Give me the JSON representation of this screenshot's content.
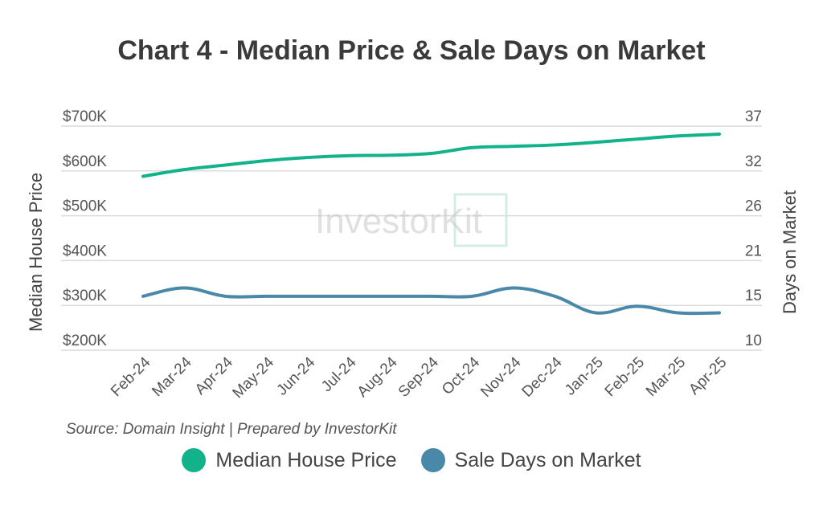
{
  "title": "Chart 4 - Median Price & Sale Days on Market",
  "source": "Source: Domain Insight | Prepared by InvestorKit",
  "watermark": "InvestorKit",
  "colors": {
    "price": "#12b28a",
    "days": "#4a88aa",
    "grid": "#dcdcdc"
  },
  "chart_data": {
    "type": "line",
    "categories": [
      "Feb-24",
      "Mar-24",
      "Apr-24",
      "May-24",
      "Jun-24",
      "Jul-24",
      "Aug-24",
      "Sep-24",
      "Oct-24",
      "Nov-24",
      "Dec-24",
      "Jan-25",
      "Feb-25",
      "Mar-25",
      "Apr-25"
    ],
    "series": [
      {
        "name": "Median House Price",
        "axis": "left",
        "values": [
          588,
          603,
          613,
          623,
          630,
          634,
          635,
          639,
          652,
          655,
          658,
          664,
          671,
          678,
          682
        ]
      },
      {
        "name": "Sale Days on Market",
        "axis": "right",
        "values": [
          16.5,
          17.5,
          16.5,
          16.5,
          16.5,
          16.5,
          16.5,
          16.5,
          16.5,
          17.5,
          16.5,
          14.5,
          15.3,
          14.5,
          14.5
        ]
      }
    ],
    "y_left": {
      "label": "Median House Price",
      "ticks": [
        "$700K",
        "$600K",
        "$500K",
        "$400K",
        "$300K",
        "$200K"
      ],
      "ylim": [
        200,
        700
      ]
    },
    "y_right": {
      "label": "Days on Market",
      "ticks": [
        "37",
        "32",
        "26",
        "21",
        "15",
        "10"
      ],
      "ylim": [
        10,
        37
      ]
    },
    "legend": [
      "Median House Price",
      "Sale Days on Market"
    ]
  }
}
